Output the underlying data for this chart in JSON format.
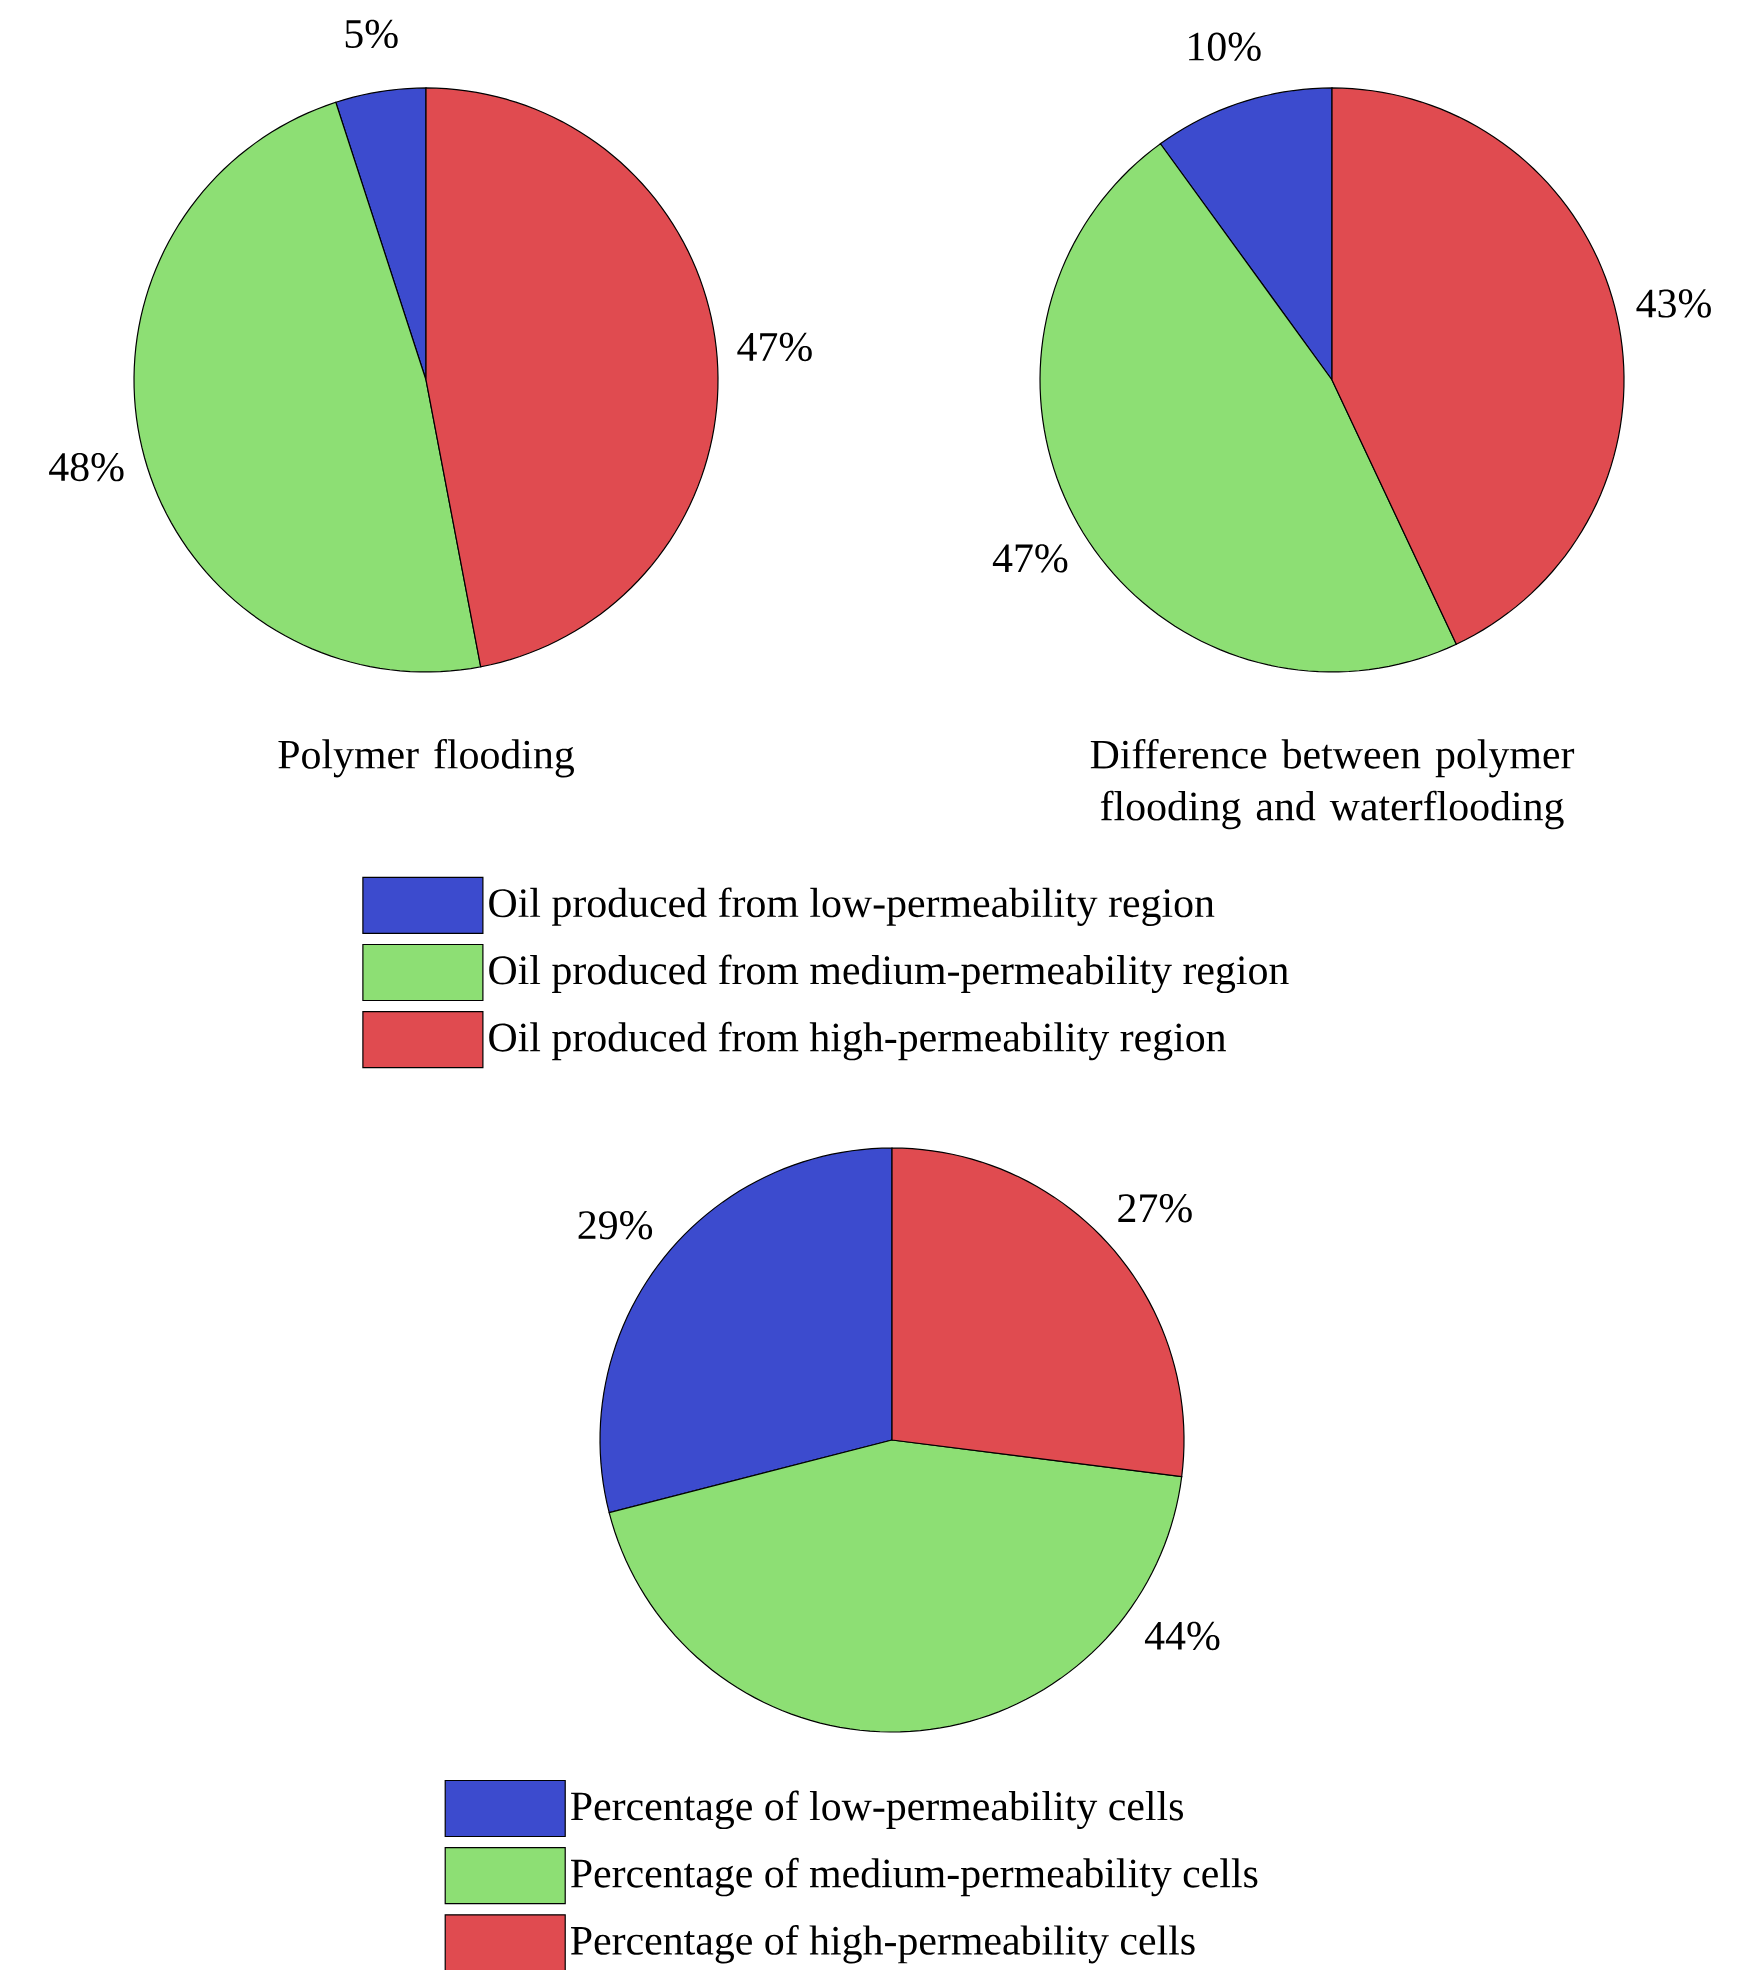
{
  "chart_data": [
    {
      "type": "pie",
      "title": "Polymer flooding",
      "categories": [
        "Oil produced from low-permeability region",
        "Oil produced from medium-permeability region",
        "Oil produced from high-permeability region"
      ],
      "values": [
        5,
        48,
        47
      ],
      "colors": [
        "#3c4bce",
        "#8ddf74",
        "#e04b50"
      ],
      "value_labels": [
        "5%",
        "48%",
        "47%"
      ],
      "legend": "bottom"
    },
    {
      "type": "pie",
      "title": "Difference between polymer flooding and waterflooding",
      "categories": [
        null,
        null,
        null
      ],
      "values": [
        10,
        47,
        43
      ],
      "colors": [
        "#3c4bce",
        "#8ddf74",
        "#e04b50"
      ],
      "value_labels": [
        "10%",
        "47%",
        "43%"
      ]
    },
    {
      "type": "pie",
      "categories": [
        "Percentage of low-permeability cells",
        "Percentage of medium-permeability cells",
        "Percentage of high-permeability cells"
      ],
      "values": [
        29,
        44,
        27
      ],
      "colors": [
        "#3c4bce",
        "#8ddf74",
        "#e04b50"
      ],
      "value_labels": [
        "29%",
        "44%",
        "27%"
      ],
      "legend": "bottom"
    }
  ]
}
